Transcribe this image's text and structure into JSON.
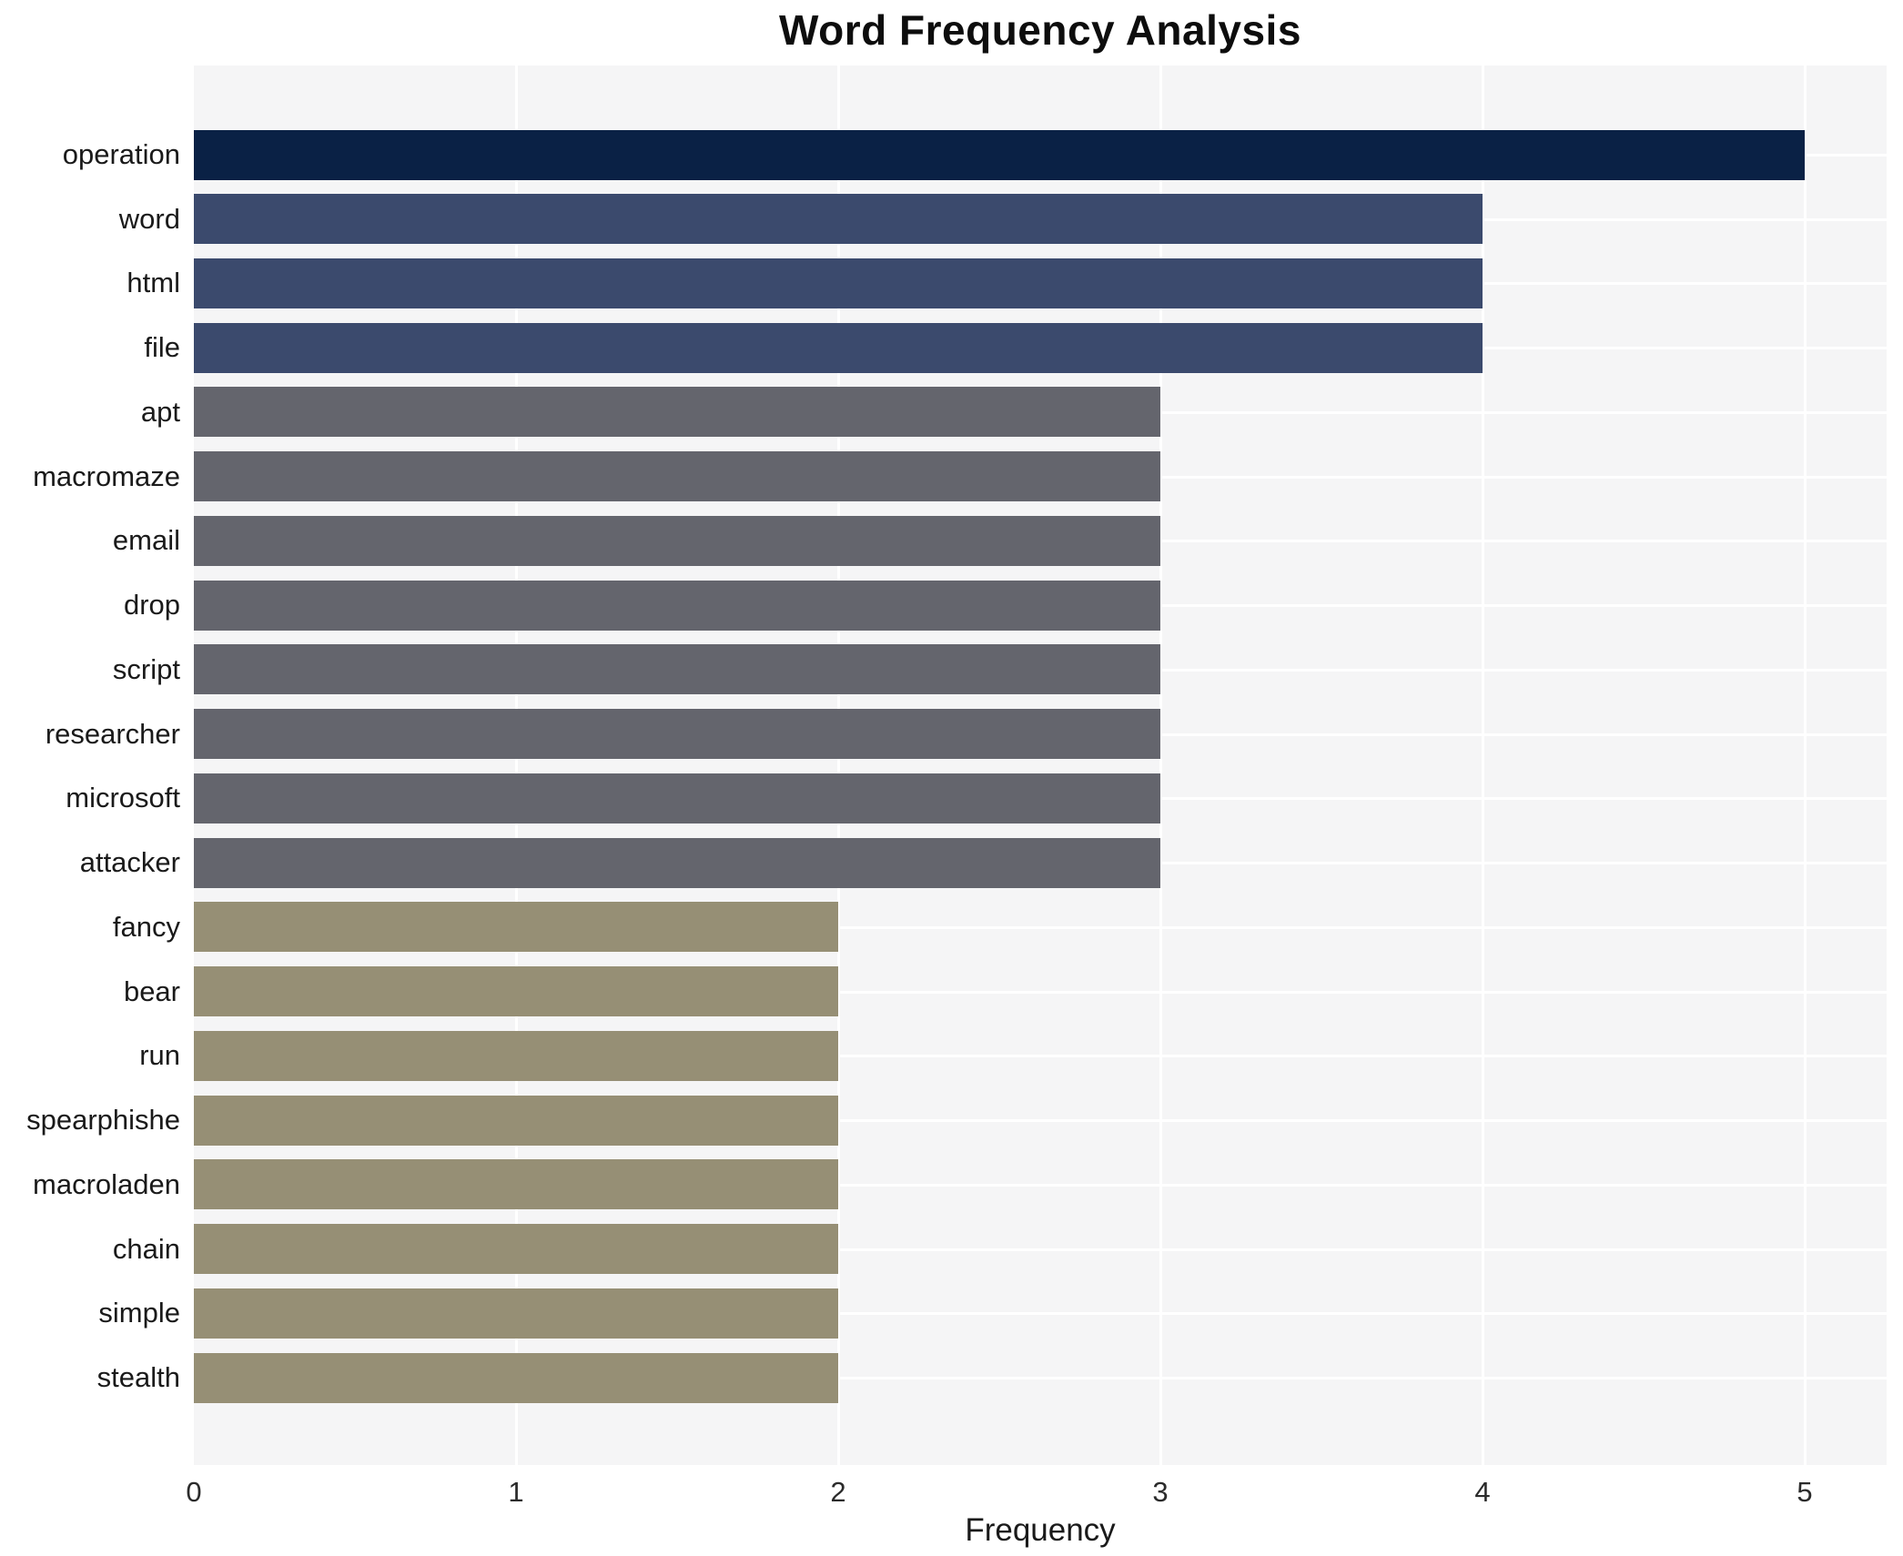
{
  "title": "Word Frequency Analysis",
  "chart_data": {
    "type": "bar",
    "orientation": "horizontal",
    "title": "Word Frequency Analysis",
    "xlabel": "Frequency",
    "ylabel": "",
    "categories": [
      "operation",
      "word",
      "html",
      "file",
      "apt",
      "macromaze",
      "email",
      "drop",
      "script",
      "researcher",
      "microsoft",
      "attacker",
      "fancy",
      "bear",
      "run",
      "spearphishe",
      "macroladen",
      "chain",
      "simple",
      "stealth"
    ],
    "values": [
      5,
      4,
      4,
      4,
      3,
      3,
      3,
      3,
      3,
      3,
      3,
      3,
      2,
      2,
      2,
      2,
      2,
      2,
      2,
      2
    ],
    "xticks": [
      "0",
      "1",
      "2",
      "3",
      "4",
      "5"
    ],
    "xlim": [
      0,
      5.25
    ],
    "grid": true,
    "legend": false,
    "colors_by_value": {
      "5": "#0a2145",
      "4": "#3b4a6d",
      "3": "#64656d",
      "2": "#968f75"
    },
    "plot_bg_color": "#f5f5f6",
    "grid_color": "#ffffff",
    "page_bg_color": "#ffffff"
  }
}
